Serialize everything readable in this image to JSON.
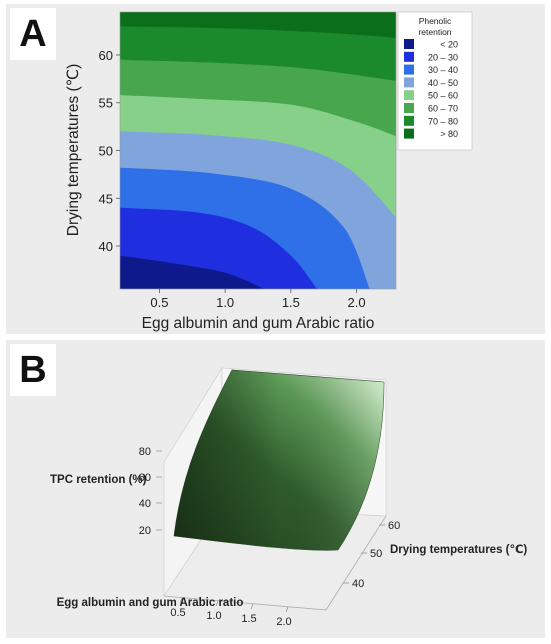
{
  "panels": {
    "a_label": "A",
    "b_label": "B"
  },
  "chart_data": [
    {
      "type": "heatmap",
      "subtype": "contour",
      "panel": "A",
      "xlabel": "Egg albumin and gum Arabic ratio",
      "ylabel": "Drying temperatures (℃)",
      "xlim": [
        0.2,
        2.3
      ],
      "ylim": [
        35.5,
        64.5
      ],
      "x_ticks": [
        "0.5",
        "1.0",
        "1.5",
        "2.0"
      ],
      "x_tick_values": [
        0.5,
        1.0,
        1.5,
        2.0
      ],
      "y_ticks": [
        "40",
        "45",
        "50",
        "55",
        "60"
      ],
      "y_tick_values": [
        40,
        45,
        50,
        55,
        60
      ],
      "legend_title": "Phenolic retention",
      "legend_position": "right",
      "legend": [
        {
          "range": "<   20",
          "color": "#0e1a8c"
        },
        {
          "range": "20  –  30",
          "color": "#1f2fe0"
        },
        {
          "range": "30  –  40",
          "color": "#2f6fe8"
        },
        {
          "range": "40  –  50",
          "color": "#7fa5dc"
        },
        {
          "range": "50  –  60",
          "color": "#86d08a"
        },
        {
          "range": "60  –  70",
          "color": "#48a64d"
        },
        {
          "range": "70  –  80",
          "color": "#1a8a2c"
        },
        {
          "range": ">   80",
          "color": "#0a6e1a"
        }
      ],
      "contours": [
        {
          "level": 20,
          "points": [
            [
              0.2,
              39.0
            ],
            [
              0.6,
              38.2
            ],
            [
              1.0,
              37.2
            ],
            [
              1.3,
              35.5
            ]
          ]
        },
        {
          "level": 30,
          "points": [
            [
              0.2,
              44.0
            ],
            [
              0.8,
              43.5
            ],
            [
              1.2,
              42.0
            ],
            [
              1.5,
              39.0
            ],
            [
              1.7,
              35.5
            ]
          ]
        },
        {
          "level": 40,
          "points": [
            [
              0.2,
              48.2
            ],
            [
              0.9,
              47.6
            ],
            [
              1.5,
              46.0
            ],
            [
              1.9,
              42.0
            ],
            [
              2.1,
              35.5
            ]
          ]
        },
        {
          "level": 50,
          "points": [
            [
              0.2,
              52.0
            ],
            [
              0.9,
              51.6
            ],
            [
              1.5,
              50.6
            ],
            [
              1.95,
              48.0
            ],
            [
              2.3,
              43.0
            ]
          ]
        },
        {
          "level": 60,
          "points": [
            [
              0.2,
              55.8
            ],
            [
              0.8,
              55.4
            ],
            [
              1.5,
              54.8
            ],
            [
              2.0,
              53.0
            ],
            [
              2.3,
              51.5
            ]
          ]
        },
        {
          "level": 70,
          "points": [
            [
              0.2,
              59.5
            ],
            [
              0.9,
              59.2
            ],
            [
              1.6,
              58.6
            ],
            [
              2.3,
              57.3
            ]
          ]
        },
        {
          "level": 80,
          "points": [
            [
              0.2,
              63.0
            ],
            [
              1.0,
              62.8
            ],
            [
              1.8,
              62.3
            ],
            [
              2.3,
              61.8
            ]
          ]
        }
      ]
    },
    {
      "type": "surface",
      "panel": "B",
      "zlabel": "TPC retention (%)",
      "xlabel": "Egg albumin and gum Arabic ratio",
      "ylabel": "Drying temperatures (℃)",
      "x_ticks": [
        "0.5",
        "1.0",
        "1.5",
        "2.0"
      ],
      "y_ticks": [
        "40",
        "50",
        "60"
      ],
      "z_ticks": [
        "20",
        "40",
        "60",
        "80"
      ],
      "surface_color": "#2f5c2c",
      "highlight_color": "#d8f4d2"
    }
  ]
}
